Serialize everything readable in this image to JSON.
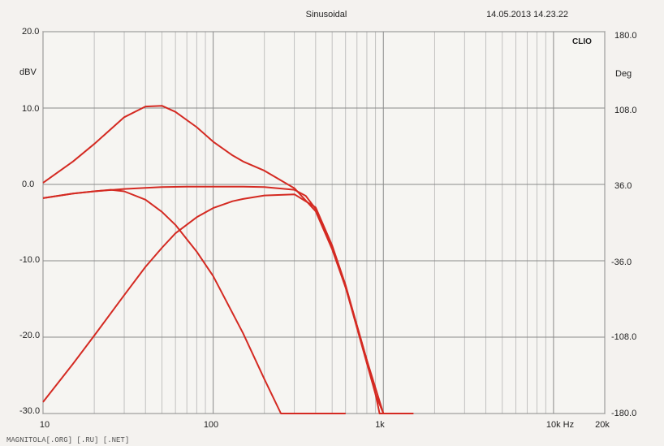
{
  "chart_data": {
    "type": "line",
    "title": "Sinusoidal",
    "timestamp": "14.05.2013 14.23.22",
    "brand": "CLIO",
    "xscale": "log",
    "xlim": [
      10,
      20000
    ],
    "ylim": [
      -30,
      20
    ],
    "y2lim": [
      -180,
      180
    ],
    "ylabel": "dBV",
    "y2label": "Deg",
    "grid": true,
    "x_ticks": [
      "10",
      "100",
      "1k",
      "10k Hz",
      "20k"
    ],
    "y_ticks": [
      "20.0",
      "10.0",
      "0.0",
      "-10.0",
      "-20.0",
      "-30.0"
    ],
    "y2_ticks": [
      "180.0",
      "108.0",
      "36.0",
      "-36.0",
      "-108.0",
      "-180.0"
    ],
    "line_color": "#d42a22",
    "series": [
      {
        "x": [
          10,
          15,
          20,
          30,
          40,
          50,
          60,
          80,
          100,
          130,
          150,
          200,
          300,
          400,
          500,
          600,
          700,
          800,
          1000,
          1500
        ],
        "y": [
          0.2,
          3.0,
          5.3,
          8.8,
          10.2,
          10.3,
          9.5,
          7.5,
          5.6,
          3.8,
          3.0,
          1.8,
          -0.5,
          -3.5,
          -8.5,
          -13.5,
          -18.5,
          -23.0,
          -30.0,
          -30.0
        ]
      },
      {
        "x": [
          10,
          15,
          20,
          30,
          40,
          50,
          70,
          100,
          150,
          200,
          300,
          350,
          400,
          500,
          600,
          700,
          800,
          900,
          1000,
          1500
        ],
        "y": [
          -1.8,
          -1.2,
          -0.9,
          -0.6,
          -0.45,
          -0.35,
          -0.3,
          -0.3,
          -0.3,
          -0.35,
          -0.7,
          -1.5,
          -3.2,
          -8.2,
          -13.5,
          -18.8,
          -23.4,
          -27.5,
          -30.0,
          -30.0
        ]
      },
      {
        "x": [
          10,
          15,
          20,
          30,
          40,
          50,
          60,
          80,
          100,
          130,
          150,
          200,
          300,
          400,
          500,
          600,
          700,
          800,
          900,
          950,
          1500
        ],
        "y": [
          -28.5,
          -23.5,
          -19.8,
          -14.5,
          -10.8,
          -8.3,
          -6.4,
          -4.3,
          -3.1,
          -2.2,
          -1.9,
          -1.45,
          -1.3,
          -3.0,
          -8.0,
          -13.2,
          -18.5,
          -23.0,
          -27.5,
          -30.0,
          -30.0
        ]
      },
      {
        "x": [
          10,
          15,
          20,
          25,
          30,
          40,
          50,
          60,
          80,
          100,
          150,
          200,
          250,
          300,
          400,
          600
        ],
        "y": [
          -1.8,
          -1.2,
          -0.9,
          -0.7,
          -0.9,
          -2.0,
          -3.6,
          -5.3,
          -8.8,
          -12.0,
          -19.5,
          -25.5,
          -30.0,
          -30.0,
          -30.0,
          -30.0
        ]
      }
    ]
  },
  "watermark": "MAGNITOLA[.ORG] [.RU] [.NET]"
}
